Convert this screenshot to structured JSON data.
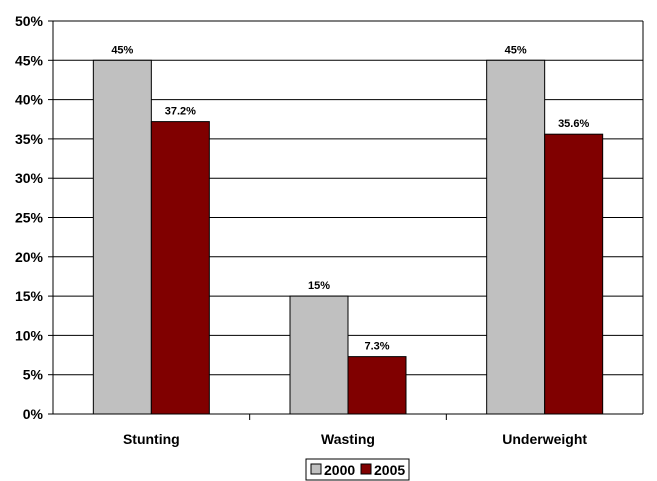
{
  "chart_data": {
    "type": "bar",
    "title": "",
    "xlabel": "",
    "ylabel": "",
    "categories": [
      "Stunting",
      "Wasting",
      "Underweight"
    ],
    "series": [
      {
        "name": "2000",
        "values": [
          45,
          15,
          45
        ],
        "labels": [
          "45%",
          "15%",
          "45%"
        ],
        "color": "#c0c0c0"
      },
      {
        "name": "2005",
        "values": [
          37.2,
          7.3,
          35.6
        ],
        "labels": [
          "37.2%",
          "7.3%",
          "35.6%"
        ],
        "color": "#800000"
      }
    ],
    "ylim": [
      0,
      50
    ],
    "yticks": [
      0,
      5,
      10,
      15,
      20,
      25,
      30,
      35,
      40,
      45,
      50
    ],
    "ytick_labels": [
      "0%",
      "5%",
      "10%",
      "15%",
      "20%",
      "25%",
      "30%",
      "35%",
      "40%",
      "45%",
      "50%"
    ],
    "grid": true,
    "legend": "bottom-center"
  }
}
